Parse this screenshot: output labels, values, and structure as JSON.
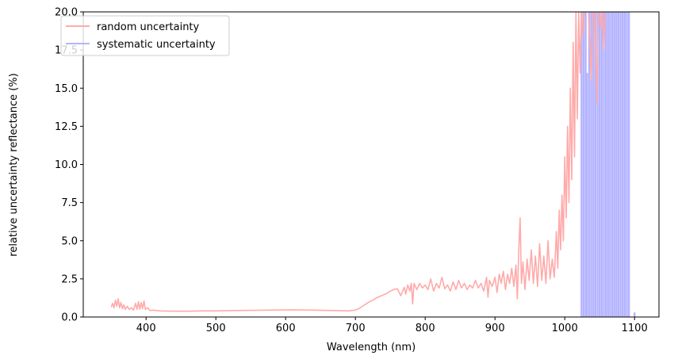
{
  "chart_data": {
    "type": "line",
    "xlabel": "Wavelength (nm)",
    "ylabel": "relative uncertainty reflectance (%)",
    "xlim": [
      310,
      1135
    ],
    "ylim": [
      0,
      20
    ],
    "x_ticks": [
      400,
      500,
      600,
      700,
      800,
      900,
      1000,
      1100
    ],
    "y_ticks": [
      0.0,
      2.5,
      5.0,
      7.5,
      10.0,
      12.5,
      15.0,
      17.5,
      20.0
    ],
    "y_tick_labels": [
      "0.0",
      "2.5",
      "5.0",
      "7.5",
      "10.0",
      "12.5",
      "15.0",
      "17.5",
      "20.0"
    ],
    "grid": false,
    "legend_position": "top-left",
    "series": [
      {
        "name": "random uncertainty",
        "color": "#ffaaaa",
        "points": [
          [
            350,
            0.65
          ],
          [
            352,
            0.9
          ],
          [
            354,
            0.6
          ],
          [
            356,
            1.1
          ],
          [
            358,
            0.7
          ],
          [
            360,
            1.2
          ],
          [
            362,
            0.6
          ],
          [
            364,
            0.95
          ],
          [
            366,
            0.55
          ],
          [
            368,
            0.8
          ],
          [
            370,
            0.5
          ],
          [
            373,
            0.7
          ],
          [
            376,
            0.5
          ],
          [
            379,
            0.6
          ],
          [
            382,
            0.45
          ],
          [
            385,
            0.9
          ],
          [
            387,
            0.5
          ],
          [
            389,
            1.0
          ],
          [
            391,
            0.5
          ],
          [
            393,
            0.95
          ],
          [
            395,
            0.55
          ],
          [
            397,
            1.05
          ],
          [
            399,
            0.5
          ],
          [
            402,
            0.6
          ],
          [
            406,
            0.42
          ],
          [
            410,
            0.45
          ],
          [
            420,
            0.4
          ],
          [
            440,
            0.38
          ],
          [
            460,
            0.38
          ],
          [
            480,
            0.4
          ],
          [
            500,
            0.4
          ],
          [
            520,
            0.42
          ],
          [
            540,
            0.43
          ],
          [
            560,
            0.44
          ],
          [
            580,
            0.45
          ],
          [
            600,
            0.47
          ],
          [
            620,
            0.46
          ],
          [
            640,
            0.45
          ],
          [
            660,
            0.43
          ],
          [
            680,
            0.41
          ],
          [
            690,
            0.4
          ],
          [
            700,
            0.45
          ],
          [
            705,
            0.55
          ],
          [
            710,
            0.7
          ],
          [
            715,
            0.85
          ],
          [
            720,
            1.0
          ],
          [
            725,
            1.1
          ],
          [
            730,
            1.25
          ],
          [
            735,
            1.35
          ],
          [
            740,
            1.45
          ],
          [
            745,
            1.55
          ],
          [
            750,
            1.7
          ],
          [
            755,
            1.8
          ],
          [
            760,
            1.85
          ],
          [
            765,
            1.4
          ],
          [
            770,
            1.95
          ],
          [
            772,
            1.5
          ],
          [
            775,
            2.1
          ],
          [
            778,
            1.7
          ],
          [
            780,
            2.2
          ],
          [
            782,
            0.85
          ],
          [
            784,
            2.2
          ],
          [
            788,
            1.8
          ],
          [
            792,
            2.2
          ],
          [
            796,
            1.9
          ],
          [
            800,
            2.1
          ],
          [
            804,
            1.8
          ],
          [
            808,
            2.5
          ],
          [
            812,
            1.7
          ],
          [
            816,
            2.2
          ],
          [
            820,
            1.9
          ],
          [
            824,
            2.6
          ],
          [
            828,
            1.85
          ],
          [
            832,
            2.1
          ],
          [
            836,
            1.7
          ],
          [
            840,
            2.3
          ],
          [
            844,
            1.8
          ],
          [
            848,
            2.4
          ],
          [
            852,
            1.9
          ],
          [
            856,
            2.2
          ],
          [
            860,
            1.8
          ],
          [
            864,
            2.1
          ],
          [
            868,
            1.9
          ],
          [
            872,
            2.4
          ],
          [
            876,
            1.9
          ],
          [
            880,
            2.2
          ],
          [
            884,
            1.7
          ],
          [
            888,
            2.6
          ],
          [
            890,
            1.3
          ],
          [
            892,
            2.4
          ],
          [
            896,
            2.0
          ],
          [
            900,
            2.6
          ],
          [
            903,
            1.6
          ],
          [
            906,
            2.8
          ],
          [
            909,
            2.2
          ],
          [
            912,
            3.0
          ],
          [
            915,
            1.8
          ],
          [
            918,
            2.8
          ],
          [
            921,
            2.2
          ],
          [
            924,
            3.2
          ],
          [
            927,
            2.0
          ],
          [
            930,
            3.4
          ],
          [
            932,
            1.2
          ],
          [
            934,
            4.2
          ],
          [
            936,
            6.5
          ],
          [
            938,
            2.2
          ],
          [
            940,
            3.6
          ],
          [
            943,
            1.8
          ],
          [
            946,
            3.8
          ],
          [
            949,
            2.4
          ],
          [
            952,
            4.4
          ],
          [
            955,
            2.2
          ],
          [
            958,
            4.0
          ],
          [
            961,
            2.0
          ],
          [
            964,
            4.8
          ],
          [
            967,
            2.4
          ],
          [
            970,
            4.0
          ],
          [
            973,
            2.2
          ],
          [
            976,
            5.0
          ],
          [
            979,
            2.5
          ],
          [
            982,
            3.8
          ],
          [
            985,
            2.6
          ],
          [
            988,
            5.6
          ],
          [
            990,
            3.2
          ],
          [
            992,
            7.0
          ],
          [
            994,
            4.4
          ],
          [
            996,
            8.0
          ],
          [
            998,
            5.0
          ],
          [
            1000,
            10.5
          ],
          [
            1002,
            6.5
          ],
          [
            1004,
            12.5
          ],
          [
            1006,
            7.5
          ],
          [
            1008,
            15.0
          ],
          [
            1010,
            9.0
          ],
          [
            1012,
            18.0
          ],
          [
            1014,
            10.5
          ],
          [
            1016,
            20.0
          ],
          [
            1018,
            13.0
          ],
          [
            1020,
            20.0
          ],
          [
            1022,
            16.0
          ],
          [
            1024,
            20.0
          ],
          [
            1026,
            18.5
          ],
          [
            1028,
            20.0
          ],
          [
            1030,
            20.0
          ],
          [
            1034,
            20.0
          ],
          [
            1038,
            15.5
          ],
          [
            1040,
            20.0
          ],
          [
            1043,
            20.0
          ],
          [
            1046,
            14.0
          ],
          [
            1048,
            20.0
          ],
          [
            1050,
            20.0
          ],
          [
            1052,
            19.0
          ],
          [
            1054,
            20.0
          ],
          [
            1056,
            17.5
          ],
          [
            1058,
            20.0
          ],
          [
            1060,
            20.0
          ]
        ]
      },
      {
        "name": "systematic uncertainty",
        "color": "#b4b4ff",
        "spikes": [
          [
            1024,
            20.0
          ],
          [
            1027,
            20.0
          ],
          [
            1030,
            20.0
          ],
          [
            1032,
            16.0
          ],
          [
            1035,
            20.0
          ],
          [
            1038,
            20.0
          ],
          [
            1041,
            20.0
          ],
          [
            1044,
            20.0
          ],
          [
            1047,
            20.0
          ],
          [
            1050,
            20.0
          ],
          [
            1053,
            20.0
          ],
          [
            1056,
            20.0
          ],
          [
            1059,
            20.0
          ],
          [
            1062,
            20.0
          ],
          [
            1065,
            20.0
          ],
          [
            1068,
            20.0
          ],
          [
            1071,
            20.0
          ],
          [
            1074,
            20.0
          ],
          [
            1077,
            20.0
          ],
          [
            1080,
            20.0
          ],
          [
            1083,
            20.0
          ],
          [
            1086,
            20.0
          ],
          [
            1089,
            20.0
          ],
          [
            1092,
            20.0
          ],
          [
            1100,
            0.3
          ]
        ]
      }
    ]
  }
}
